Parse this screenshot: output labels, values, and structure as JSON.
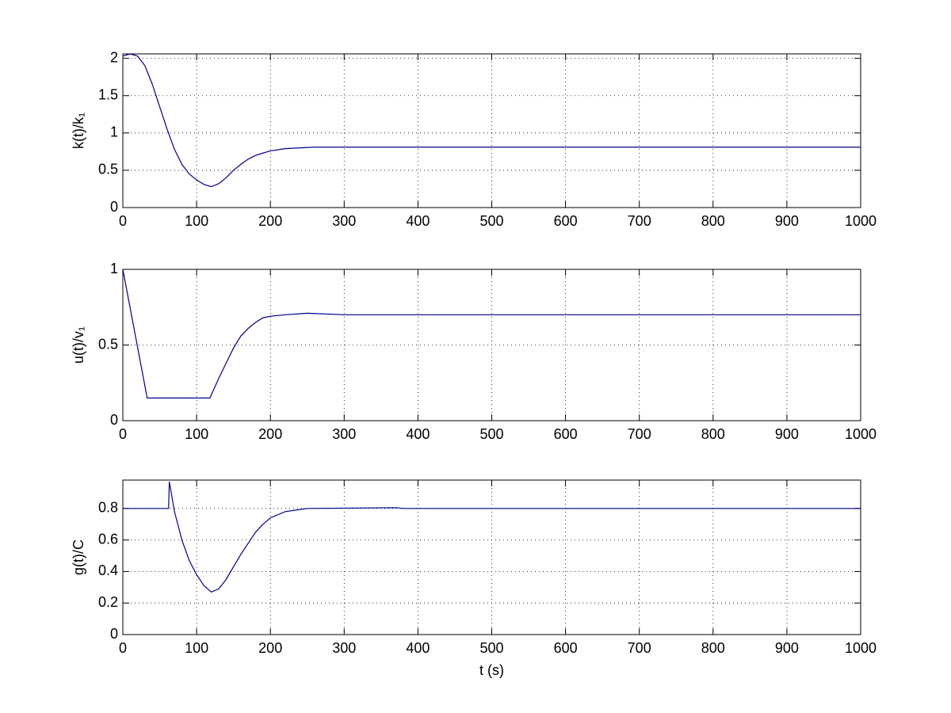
{
  "chart_data": [
    {
      "type": "line",
      "y_label": "k(t)/k₁",
      "color": "#00008b",
      "grid": true,
      "x": [
        0,
        10,
        20,
        30,
        40,
        50,
        60,
        70,
        80,
        90,
        100,
        110,
        120,
        130,
        140,
        150,
        160,
        170,
        180,
        190,
        200,
        220,
        240,
        260,
        1000
      ],
      "values": [
        2.03,
        2.06,
        2.03,
        1.9,
        1.65,
        1.35,
        1.05,
        0.78,
        0.58,
        0.45,
        0.37,
        0.31,
        0.28,
        0.32,
        0.4,
        0.5,
        0.58,
        0.65,
        0.7,
        0.73,
        0.76,
        0.79,
        0.8,
        0.81,
        0.81
      ],
      "xlim": [
        0,
        1000
      ],
      "ylim": [
        0,
        2.06
      ],
      "xticks": [
        0,
        100,
        200,
        300,
        400,
        500,
        600,
        700,
        800,
        900,
        1000
      ],
      "yticks": [
        0,
        0.5,
        1,
        1.5,
        2
      ]
    },
    {
      "type": "line",
      "y_label": "u(t)/v₁",
      "color": "#00008b",
      "grid": true,
      "x": [
        0,
        33,
        118,
        130,
        140,
        150,
        160,
        170,
        180,
        190,
        200,
        220,
        250,
        300,
        1000
      ],
      "values": [
        1,
        0.15,
        0.15,
        0.28,
        0.38,
        0.48,
        0.56,
        0.61,
        0.65,
        0.68,
        0.69,
        0.7,
        0.71,
        0.7,
        0.7
      ],
      "xlim": [
        0,
        1000
      ],
      "ylim": [
        0,
        1
      ],
      "xticks": [
        0,
        100,
        200,
        300,
        400,
        500,
        600,
        700,
        800,
        900,
        1000
      ],
      "yticks": [
        0,
        0.5,
        1
      ]
    },
    {
      "type": "line",
      "y_label": "g(t)/C",
      "x_label": "t (s)",
      "color": "#00008b",
      "grid": true,
      "x": [
        0,
        62,
        63,
        70,
        80,
        90,
        100,
        110,
        120,
        130,
        140,
        150,
        160,
        170,
        180,
        190,
        200,
        220,
        250,
        370,
        380,
        1000
      ],
      "values": [
        0.8,
        0.8,
        0.97,
        0.78,
        0.6,
        0.47,
        0.38,
        0.31,
        0.27,
        0.29,
        0.35,
        0.43,
        0.51,
        0.58,
        0.65,
        0.7,
        0.74,
        0.78,
        0.8,
        0.805,
        0.8,
        0.8
      ],
      "xlim": [
        0,
        1000
      ],
      "ylim": [
        0,
        0.98
      ],
      "xticks": [
        0,
        100,
        200,
        300,
        400,
        500,
        600,
        700,
        800,
        900,
        1000
      ],
      "yticks": [
        0,
        0.2,
        0.4,
        0.6,
        0.8
      ]
    }
  ]
}
